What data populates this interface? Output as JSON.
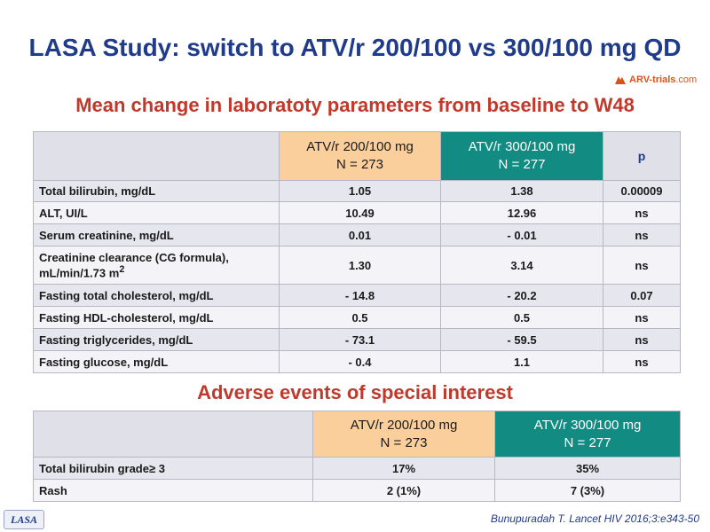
{
  "title": "LASA Study: switch to ATV/r 200/100 vs 300/100 mg QD",
  "logo": {
    "text": "ARV-trials",
    "domain": ".com",
    "icon": "arv-logo-icon"
  },
  "lab_section_title": "Mean change in laboratoty parameters from baseline to W48",
  "lab_table": {
    "headers": {
      "col_a_line1": "ATV/r 200/100 mg",
      "col_a_line2": "N = 273",
      "col_b_line1": "ATV/r 300/100 mg",
      "col_b_line2": "N = 277",
      "col_p": "p"
    },
    "rows": [
      {
        "label": "Total bilirubin, mg/dL",
        "a": "1.05",
        "b": "1.38",
        "p": "0.00009"
      },
      {
        "label": "ALT, UI/L",
        "a": "10.49",
        "b": "12.96",
        "p": "ns"
      },
      {
        "label": "Serum creatinine, mg/dL",
        "a": "0.01",
        "b": "- 0.01",
        "p": "ns"
      },
      {
        "label_line1": "Creatinine clearance (CG formula),",
        "label_line2": "mL/min/1.73 m",
        "label_sup": "2",
        "a": "1.30",
        "b": "3.14",
        "p": "ns"
      },
      {
        "label": "Fasting total cholesterol, mg/dL",
        "a": "- 14.8",
        "b": "- 20.2",
        "p": "0.07"
      },
      {
        "label": "Fasting HDL-cholesterol, mg/dL",
        "a": "0.5",
        "b": "0.5",
        "p": "ns"
      },
      {
        "label": "Fasting triglycerides, mg/dL",
        "a": "- 73.1",
        "b": "- 59.5",
        "p": "ns"
      },
      {
        "label": "Fasting glucose, mg/dL",
        "a": "- 0.4",
        "b": "1.1",
        "p": "ns"
      }
    ]
  },
  "ae_section_title": "Adverse events of special interest",
  "ae_table": {
    "headers": {
      "col_a_line1": "ATV/r 200/100 mg",
      "col_a_line2": "N = 273",
      "col_b_line1": "ATV/r 300/100 mg",
      "col_b_line2": "N = 277"
    },
    "rows": [
      {
        "label": "Total bilirubin grade≥ 3",
        "a": "17%",
        "b": "35%"
      },
      {
        "label": "Rash",
        "a": "2 (1%)",
        "b": "7 (3%)"
      }
    ]
  },
  "footer": {
    "badge": "LASA",
    "citation": "Bunupuradah T. Lancet HIV 2016;3:e343-50"
  },
  "colors": {
    "title": "#1f3b8a",
    "section_title": "#c0392b",
    "col_a_header": "#fbcf9c",
    "col_b_header": "#128c82"
  }
}
